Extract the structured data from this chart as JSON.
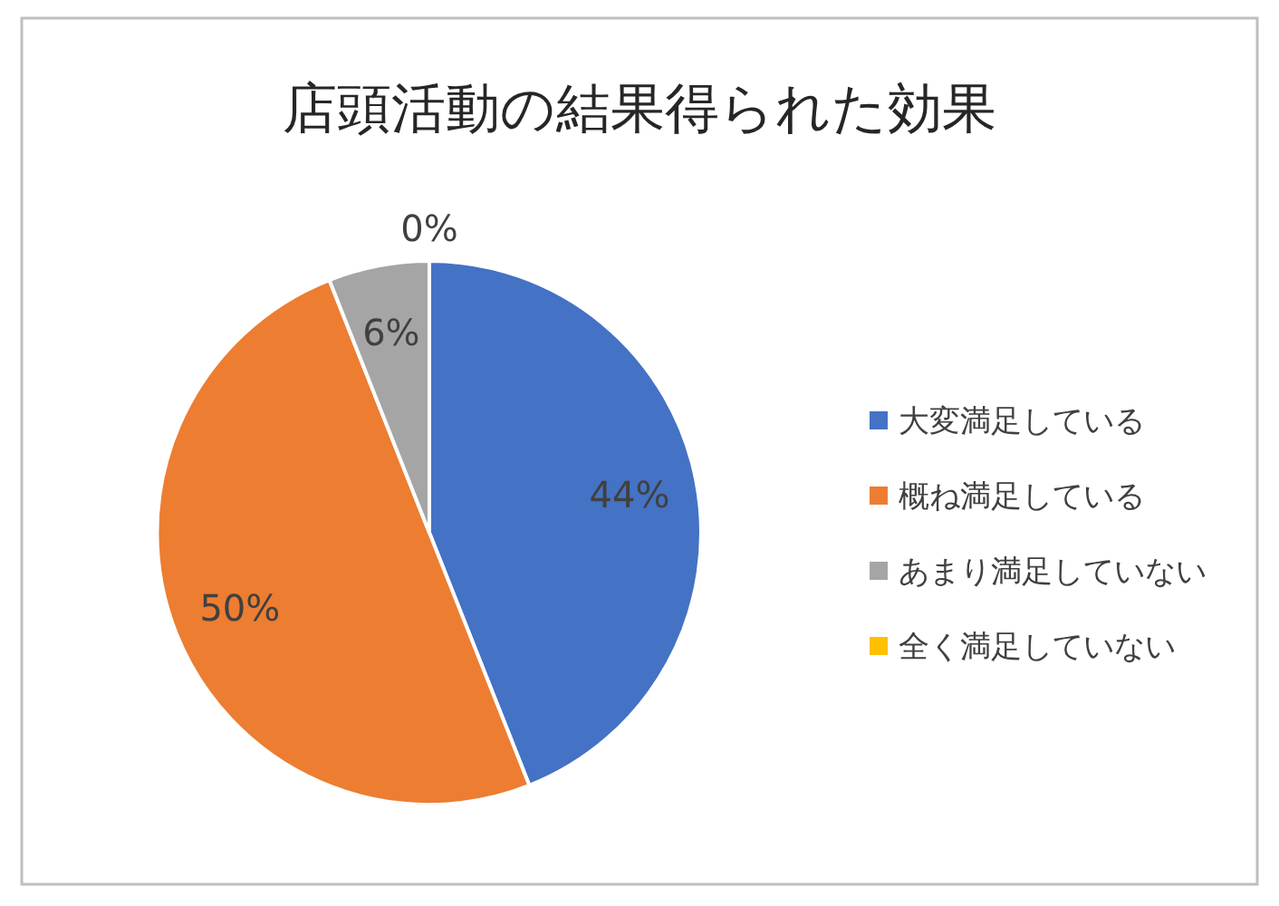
{
  "chart_data": {
    "type": "pie",
    "title": "店頭活動の結果得られた効果",
    "categories": [
      "大変満足している",
      "概ね満足している",
      "あまり満足していない",
      "全く満足していない"
    ],
    "values": [
      44,
      50,
      6,
      0
    ],
    "colors": [
      "#4472c4",
      "#ed7d31",
      "#a5a5a5",
      "#ffc000"
    ],
    "value_labels": [
      "44%",
      "50%",
      "6%",
      "0%"
    ],
    "legend": "right"
  }
}
